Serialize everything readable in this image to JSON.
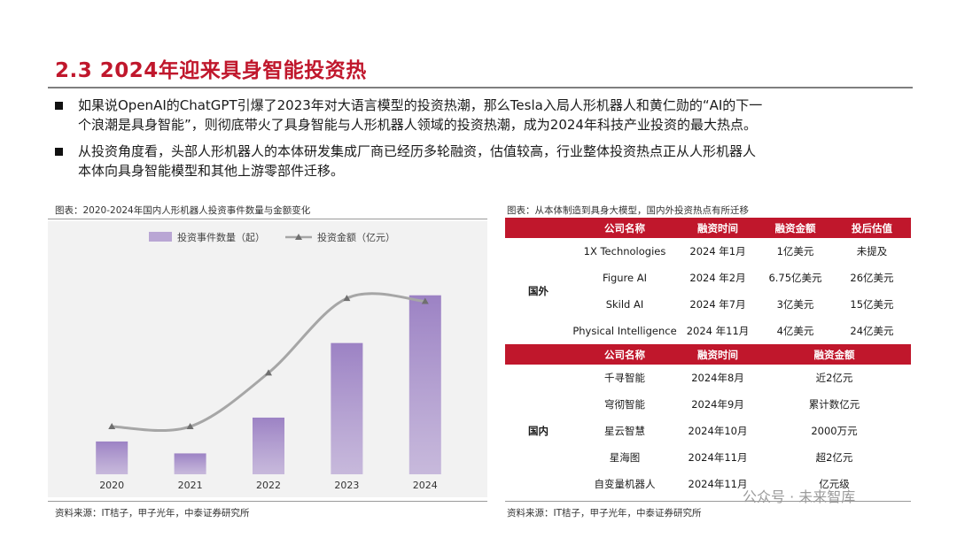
{
  "header": {
    "title": "2.3 2024年迎来具身智能投资热"
  },
  "bullets": [
    {
      "lines": [
        "如果说OpenAI的ChatGPT引爆了2023年对大语言模型的投资热潮，那么Tesla入局人形机器人和黄仁勋的“AI的下一",
        "个浪潮是具身智能”，则彻底带火了具身智能与人形机器人领域的投资热潮，成为2024年科技产业投资的最大热点。"
      ]
    },
    {
      "lines": [
        "从投资角度看，头部人形机器人的本体研发集成厂商已经历多轮融资，估值较高，行业整体投资热点正从人形机器人",
        "本体向具身智能模型和其他上游零部件迁移。"
      ]
    }
  ],
  "left_panel": {
    "caption": "图表：2020-2024年国内人形机器人投资事件数量与金额变化",
    "source": "资料来源：IT桔子，甲子光年，中泰证券研究所"
  },
  "chart_data": {
    "type": "bar",
    "categories": [
      "2020",
      "2021",
      "2022",
      "2023",
      "2024"
    ],
    "series": [
      {
        "name": "投资事件数量（起）",
        "type": "bar",
        "axis": "left",
        "values": [
          11,
          7,
          19,
          44,
          60
        ]
      },
      {
        "name": "投资金额（亿元）",
        "type": "line",
        "axis": "right",
        "values": [
          16,
          16,
          34,
          59,
          58
        ]
      }
    ],
    "ylim_left": [
      0,
      70
    ],
    "ylim_right": [
      0,
      70
    ],
    "xlabel": "",
    "ylabel": "",
    "grid": false,
    "legend": "top",
    "colors": {
      "bar": "#b9a6d4",
      "bar_top": "#9c82c4",
      "line": "#a6a6a6",
      "marker": "#6f6f6f"
    }
  },
  "right_panel": {
    "caption": "图表：从本体制造到具身大模型，国内外投资热点有所迁移",
    "source": "资料来源：IT桔子，甲子光年，中泰证券研究所",
    "foreign": {
      "region": "国外",
      "headers": [
        "公司名称",
        "融资时间",
        "融资金额",
        "投后估值"
      ],
      "rows": [
        [
          "1X Technologies",
          "2024 年1月",
          "1亿美元",
          "未提及"
        ],
        [
          "Figure AI",
          "2024 年2月",
          "6.75亿美元",
          "26亿美元"
        ],
        [
          "Skild AI",
          "2024 年7月",
          "3亿美元",
          "15亿美元"
        ],
        [
          "Physical Intelligence",
          "2024 年11月",
          "4亿美元",
          "24亿美元"
        ]
      ]
    },
    "domestic": {
      "region": "国内",
      "headers": [
        "公司名称",
        "融资时间",
        "融资金额"
      ],
      "rows": [
        [
          "千寻智能",
          "2024年8月",
          "近2亿元"
        ],
        [
          "穹彻智能",
          "2024年9月",
          "累计数亿元"
        ],
        [
          "星云智慧",
          "2024年10月",
          "2000万元"
        ],
        [
          "星海图",
          "2024年11月",
          "超2亿元"
        ],
        [
          "自变量机器人",
          "2024年11月",
          "亿元级"
        ]
      ]
    }
  },
  "watermark": "公众号 · 未来智库",
  "colors": {
    "accent": "#c0172c"
  }
}
